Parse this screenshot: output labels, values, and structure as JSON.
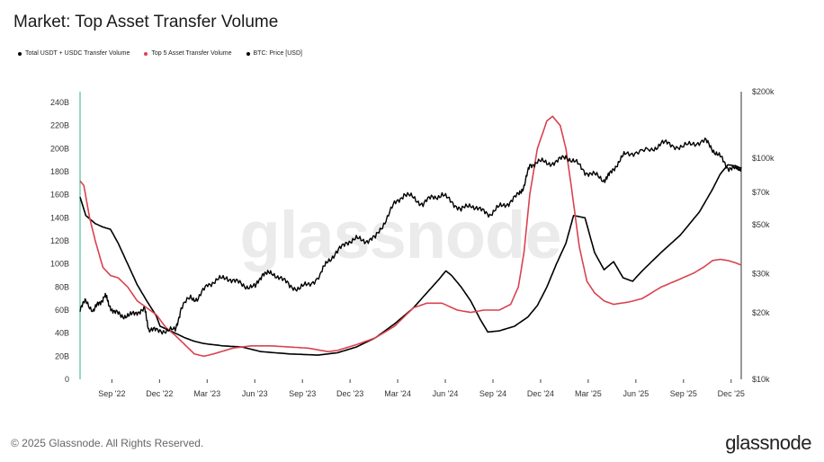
{
  "title": "Market: Top Asset Transfer Volume",
  "legend": [
    {
      "label": "Total USDT + USDC Transfer Volume",
      "color": "#000000"
    },
    {
      "label": "Top 5 Asset Transfer Volume",
      "color": "#d9424f"
    },
    {
      "label": "BTC: Price [USD]",
      "color": "#000000"
    }
  ],
  "watermark": "glassnode",
  "footer": "© 2025 Glassnode. All Rights Reserved.",
  "brand": "glassnode",
  "chart_data": {
    "type": "line",
    "title": "Market: Top Asset Transfer Volume",
    "x_range": [
      2022.5,
      2025.97
    ],
    "x_ticks": [
      {
        "label": "Sep '22",
        "t": 2022.667
      },
      {
        "label": "Dec '22",
        "t": 2022.917
      },
      {
        "label": "Mar '23",
        "t": 2023.167
      },
      {
        "label": "Jun '23",
        "t": 2023.417
      },
      {
        "label": "Sep '23",
        "t": 2023.667
      },
      {
        "label": "Dec '23",
        "t": 2023.917
      },
      {
        "label": "Mar '24",
        "t": 2024.167
      },
      {
        "label": "Jun '24",
        "t": 2024.417
      },
      {
        "label": "Sep '24",
        "t": 2024.667
      },
      {
        "label": "Dec '24",
        "t": 2024.917
      },
      {
        "label": "Mar '25",
        "t": 2025.167
      },
      {
        "label": "Jun '25",
        "t": 2025.417
      },
      {
        "label": "Sep '25",
        "t": 2025.667
      },
      {
        "label": "Dec '25",
        "t": 2025.917
      }
    ],
    "y_left": {
      "min": 0,
      "max": 240,
      "unit": "B",
      "ticks": [
        "0",
        "20B",
        "40B",
        "60B",
        "80B",
        "100B",
        "120B",
        "140B",
        "160B",
        "180B",
        "200B",
        "220B",
        "240B"
      ]
    },
    "y_right": {
      "scale": "log",
      "min": 10000,
      "max": 200000,
      "ticks": [
        {
          "label": "$10k",
          "v": 10000
        },
        {
          "label": "$20k",
          "v": 20000
        },
        {
          "label": "$30k",
          "v": 30000
        },
        {
          "label": "$50k",
          "v": 50000
        },
        {
          "label": "$70k",
          "v": 70000
        },
        {
          "label": "$100k",
          "v": 100000
        },
        {
          "label": "$200k",
          "v": 200000
        }
      ]
    },
    "series": [
      {
        "name": "Total USDT + USDC Transfer Volume",
        "axis": "left",
        "color": "#000000",
        "points": [
          [
            2022.5,
            158
          ],
          [
            2022.53,
            142
          ],
          [
            2022.58,
            135
          ],
          [
            2022.62,
            132
          ],
          [
            2022.66,
            130
          ],
          [
            2022.7,
            118
          ],
          [
            2022.75,
            100
          ],
          [
            2022.8,
            82
          ],
          [
            2022.85,
            68
          ],
          [
            2022.9,
            55
          ],
          [
            2022.92,
            46
          ],
          [
            2023.0,
            40
          ],
          [
            2023.05,
            36
          ],
          [
            2023.1,
            33
          ],
          [
            2023.15,
            31
          ],
          [
            2023.25,
            29
          ],
          [
            2023.35,
            28
          ],
          [
            2023.45,
            24
          ],
          [
            2023.6,
            22
          ],
          [
            2023.75,
            21
          ],
          [
            2023.85,
            23
          ],
          [
            2023.95,
            28
          ],
          [
            2024.05,
            36
          ],
          [
            2024.15,
            48
          ],
          [
            2024.25,
            62
          ],
          [
            2024.32,
            75
          ],
          [
            2024.38,
            86
          ],
          [
            2024.42,
            94
          ],
          [
            2024.45,
            90
          ],
          [
            2024.5,
            80
          ],
          [
            2024.55,
            68
          ],
          [
            2024.6,
            52
          ],
          [
            2024.64,
            41
          ],
          [
            2024.7,
            42
          ],
          [
            2024.78,
            46
          ],
          [
            2024.85,
            54
          ],
          [
            2024.9,
            64
          ],
          [
            2024.95,
            80
          ],
          [
            2025.0,
            100
          ],
          [
            2025.05,
            118
          ],
          [
            2025.09,
            142
          ],
          [
            2025.15,
            140
          ],
          [
            2025.2,
            110
          ],
          [
            2025.25,
            95
          ],
          [
            2025.3,
            102
          ],
          [
            2025.35,
            88
          ],
          [
            2025.4,
            85
          ],
          [
            2025.45,
            94
          ],
          [
            2025.55,
            110
          ],
          [
            2025.65,
            125
          ],
          [
            2025.75,
            145
          ],
          [
            2025.82,
            165
          ],
          [
            2025.86,
            178
          ],
          [
            2025.9,
            186
          ],
          [
            2025.94,
            185
          ],
          [
            2025.97,
            183
          ]
        ]
      },
      {
        "name": "Top 5 Asset Transfer Volume",
        "axis": "left",
        "color": "#d9424f",
        "points": [
          [
            2022.5,
            172
          ],
          [
            2022.52,
            168
          ],
          [
            2022.55,
            140
          ],
          [
            2022.58,
            120
          ],
          [
            2022.62,
            97
          ],
          [
            2022.66,
            90
          ],
          [
            2022.7,
            88
          ],
          [
            2022.75,
            80
          ],
          [
            2022.8,
            68
          ],
          [
            2022.85,
            62
          ],
          [
            2022.9,
            56
          ],
          [
            2022.95,
            45
          ],
          [
            2023.0,
            38
          ],
          [
            2023.05,
            30
          ],
          [
            2023.1,
            22
          ],
          [
            2023.15,
            20
          ],
          [
            2023.2,
            22
          ],
          [
            2023.3,
            27
          ],
          [
            2023.4,
            29
          ],
          [
            2023.5,
            29
          ],
          [
            2023.6,
            28
          ],
          [
            2023.7,
            27
          ],
          [
            2023.8,
            24
          ],
          [
            2023.85,
            25
          ],
          [
            2023.95,
            30
          ],
          [
            2024.05,
            36
          ],
          [
            2024.15,
            46
          ],
          [
            2024.25,
            62
          ],
          [
            2024.32,
            66
          ],
          [
            2024.4,
            66
          ],
          [
            2024.48,
            60
          ],
          [
            2024.55,
            58
          ],
          [
            2024.62,
            60
          ],
          [
            2024.7,
            60
          ],
          [
            2024.76,
            65
          ],
          [
            2024.8,
            80
          ],
          [
            2024.83,
            110
          ],
          [
            2024.86,
            160
          ],
          [
            2024.9,
            200
          ],
          [
            2024.95,
            224
          ],
          [
            2024.98,
            228
          ],
          [
            2025.02,
            220
          ],
          [
            2025.05,
            200
          ],
          [
            2025.08,
            165
          ],
          [
            2025.12,
            115
          ],
          [
            2025.16,
            85
          ],
          [
            2025.2,
            75
          ],
          [
            2025.25,
            68
          ],
          [
            2025.3,
            65
          ],
          [
            2025.38,
            67
          ],
          [
            2025.45,
            70
          ],
          [
            2025.55,
            80
          ],
          [
            2025.65,
            87
          ],
          [
            2025.72,
            92
          ],
          [
            2025.78,
            98
          ],
          [
            2025.82,
            103
          ],
          [
            2025.86,
            104
          ],
          [
            2025.9,
            103
          ],
          [
            2025.94,
            101
          ],
          [
            2025.97,
            99
          ]
        ]
      },
      {
        "name": "BTC: Price [USD]",
        "axis": "right",
        "color": "#000000",
        "points": [
          [
            2022.5,
            21000
          ],
          [
            2022.53,
            22500
          ],
          [
            2022.57,
            20500
          ],
          [
            2022.6,
            22000
          ],
          [
            2022.63,
            24000
          ],
          [
            2022.65,
            22000
          ],
          [
            2022.68,
            20000
          ],
          [
            2022.72,
            19500
          ],
          [
            2022.76,
            19300
          ],
          [
            2022.8,
            20300
          ],
          [
            2022.84,
            20500
          ],
          [
            2022.86,
            17000
          ],
          [
            2022.9,
            16500
          ],
          [
            2022.95,
            16700
          ],
          [
            2023.0,
            16600
          ],
          [
            2023.03,
            21000
          ],
          [
            2023.08,
            23500
          ],
          [
            2023.12,
            23000
          ],
          [
            2023.17,
            27000
          ],
          [
            2023.22,
            28000
          ],
          [
            2023.27,
            29000
          ],
          [
            2023.32,
            27500
          ],
          [
            2023.37,
            26500
          ],
          [
            2023.42,
            26000
          ],
          [
            2023.46,
            30500
          ],
          [
            2023.5,
            29800
          ],
          [
            2023.55,
            29300
          ],
          [
            2023.6,
            26200
          ],
          [
            2023.65,
            25900
          ],
          [
            2023.7,
            26800
          ],
          [
            2023.76,
            29500
          ],
          [
            2023.8,
            34500
          ],
          [
            2023.85,
            37500
          ],
          [
            2023.9,
            42000
          ],
          [
            2023.95,
            43000
          ],
          [
            2024.0,
            42500
          ],
          [
            2024.05,
            43500
          ],
          [
            2024.1,
            52000
          ],
          [
            2024.15,
            62000
          ],
          [
            2024.2,
            69000
          ],
          [
            2024.25,
            66000
          ],
          [
            2024.3,
            62000
          ],
          [
            2024.35,
            67000
          ],
          [
            2024.4,
            68000
          ],
          [
            2024.45,
            64000
          ],
          [
            2024.5,
            58000
          ],
          [
            2024.55,
            62000
          ],
          [
            2024.6,
            58000
          ],
          [
            2024.65,
            56000
          ],
          [
            2024.7,
            60000
          ],
          [
            2024.75,
            63000
          ],
          [
            2024.8,
            68000
          ],
          [
            2024.83,
            75000
          ],
          [
            2024.86,
            92000
          ],
          [
            2024.9,
            97000
          ],
          [
            2024.95,
            95000
          ],
          [
            2025.0,
            96000
          ],
          [
            2025.05,
            102000
          ],
          [
            2025.1,
            96000
          ],
          [
            2025.15,
            87000
          ],
          [
            2025.2,
            84000
          ],
          [
            2025.25,
            80000
          ],
          [
            2025.28,
            84000
          ],
          [
            2025.32,
            95000
          ],
          [
            2025.36,
            104000
          ],
          [
            2025.42,
            107000
          ],
          [
            2025.5,
            108000
          ],
          [
            2025.55,
            118000
          ],
          [
            2025.6,
            115000
          ],
          [
            2025.66,
            112000
          ],
          [
            2025.72,
            117000
          ],
          [
            2025.78,
            120000
          ],
          [
            2025.82,
            110000
          ],
          [
            2025.86,
            101000
          ],
          [
            2025.9,
            91000
          ],
          [
            2025.94,
            89000
          ],
          [
            2025.97,
            91000
          ]
        ]
      }
    ]
  }
}
